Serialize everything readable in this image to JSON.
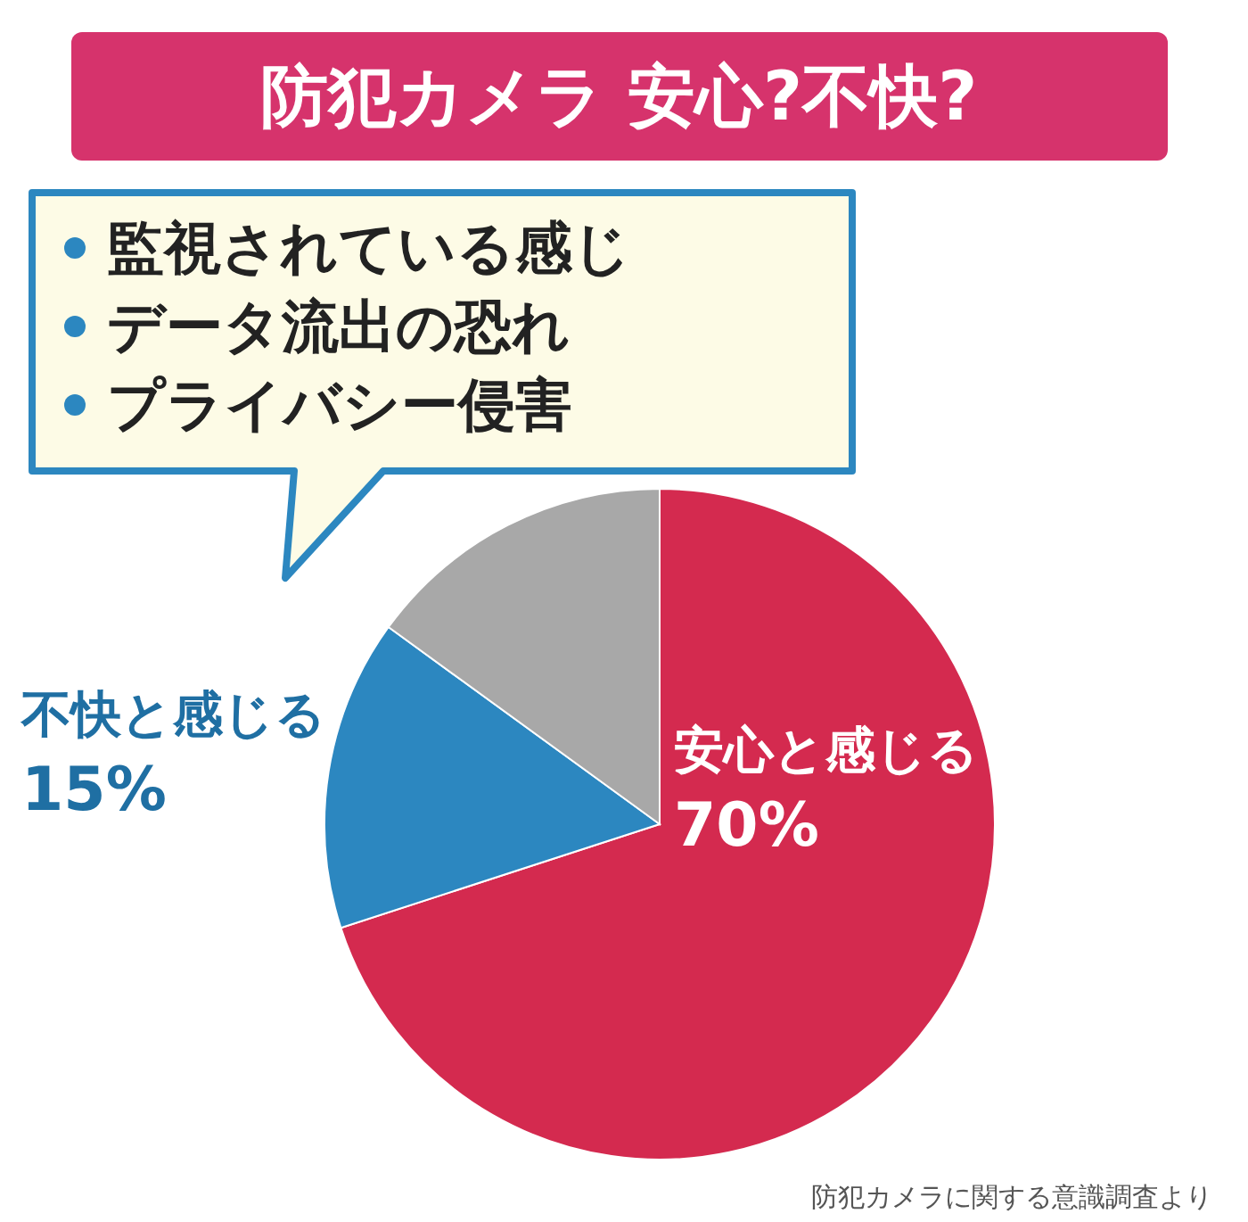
{
  "chart_data": {
    "type": "pie",
    "title": "防犯カメラ 安心?不快?",
    "categories": [
      "安心と感じる",
      "不快と感じる",
      null
    ],
    "values": [
      70,
      15,
      15
    ],
    "colors": [
      "#d42a4f",
      "#2c87c0",
      "#a8a8a8"
    ],
    "value_labels": [
      "70%",
      "15%",
      null
    ],
    "annotations": [
      "監視されている感じ",
      "データ流出の恐れ",
      "プライバシー侵害",
      "防犯カメラに関する意識調査より"
    ]
  }
}
